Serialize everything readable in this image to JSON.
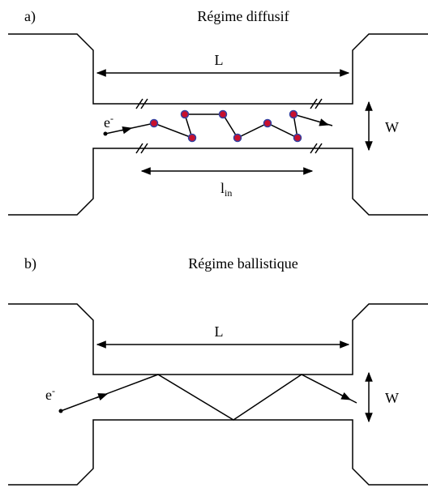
{
  "panels": [
    {
      "letter": "a)",
      "title": "Régime diffusif",
      "length": "L",
      "width": "W",
      "electron": {
        "base": "e",
        "sup": "-"
      },
      "mean_path": {
        "base": "l",
        "sub": "in"
      }
    },
    {
      "letter": "b)",
      "title": "Régime ballistique",
      "length": "L",
      "width": "W",
      "electron": {
        "base": "e",
        "sup": "-"
      }
    }
  ]
}
